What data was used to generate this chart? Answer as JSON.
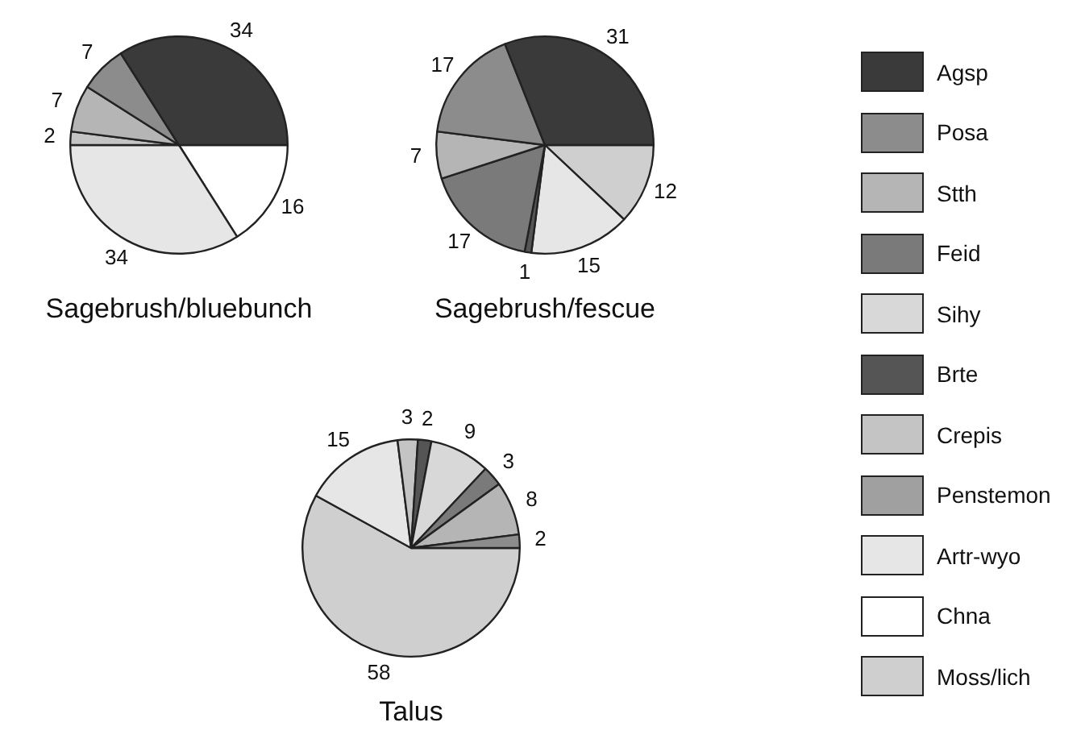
{
  "chart_data": [
    {
      "type": "pie",
      "title": "Sagebrush/bluebunch",
      "categories": [
        "Agsp",
        "Posa",
        "Stth",
        "Feid",
        "Sihy",
        "Brte",
        "Crepis",
        "Penstemon",
        "Artr-wyo",
        "Chna",
        "Moss/lich"
      ],
      "values": [
        34,
        7,
        7,
        null,
        null,
        null,
        2,
        null,
        34,
        16,
        null
      ],
      "colors": [
        "#3a3a3a",
        "#8c8c8c",
        "#b5b5b5",
        "#7a7a7a",
        "#d8d8d8",
        "#555555",
        "#c4c4c4",
        "#a0a0a0",
        "#e6e6e6",
        "#ffffff",
        "#cfcfcf"
      ],
      "data_labels": true,
      "legend": "right"
    },
    {
      "type": "pie",
      "title": "Sagebrush/fescue",
      "categories": [
        null,
        null,
        null,
        null,
        null,
        null,
        null,
        null,
        null,
        null,
        null
      ],
      "values": [
        31,
        17,
        7,
        17,
        null,
        1,
        null,
        null,
        15,
        null,
        12
      ],
      "colors": [
        "#3a3a3a",
        "#8c8c8c",
        "#b5b5b5",
        "#7a7a7a",
        "#d8d8d8",
        "#555555",
        "#c4c4c4",
        "#a0a0a0",
        "#e6e6e6",
        "#ffffff",
        "#cfcfcf"
      ],
      "data_labels": true
    },
    {
      "type": "pie",
      "title": "Talus",
      "categories": [
        null,
        null,
        null,
        null,
        null,
        null,
        null,
        null,
        null,
        null,
        null
      ],
      "values": [
        null,
        2,
        8,
        3,
        9,
        2,
        3,
        null,
        15,
        null,
        58
      ],
      "colors": [
        "#3a3a3a",
        "#8c8c8c",
        "#b5b5b5",
        "#7a7a7a",
        "#d8d8d8",
        "#555555",
        "#c4c4c4",
        "#a0a0a0",
        "#e6e6e6",
        "#ffffff",
        "#cfcfcf"
      ],
      "data_labels": true
    }
  ]
}
